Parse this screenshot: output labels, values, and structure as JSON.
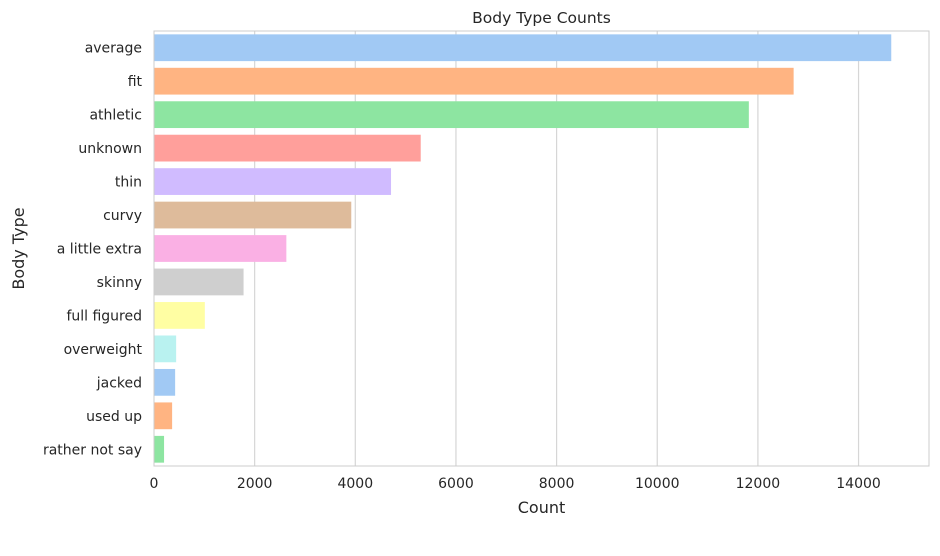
{
  "chart_data": {
    "type": "bar",
    "orientation": "horizontal",
    "title": "Body Type Counts",
    "xlabel": "Count",
    "ylabel": "Body Type",
    "xlim": [
      0,
      15400
    ],
    "xticks": [
      0,
      2000,
      4000,
      6000,
      8000,
      10000,
      12000,
      14000
    ],
    "grid": "vertical",
    "categories": [
      "average",
      "fit",
      "athletic",
      "unknown",
      "thin",
      "curvy",
      "a little extra",
      "skinny",
      "full figured",
      "overweight",
      "jacked",
      "used up",
      "rather not say"
    ],
    "values": [
      14650,
      12710,
      11820,
      5300,
      4710,
      3920,
      2630,
      1780,
      1010,
      440,
      420,
      360,
      200
    ],
    "colors": [
      "#a1c9f4",
      "#ffb482",
      "#8de5a1",
      "#ff9f9b",
      "#d0bbff",
      "#debb9b",
      "#fab0e4",
      "#cfcfcf",
      "#fffea3",
      "#b9f2f0",
      "#a1c9f4",
      "#ffb482",
      "#8de5a1"
    ]
  }
}
